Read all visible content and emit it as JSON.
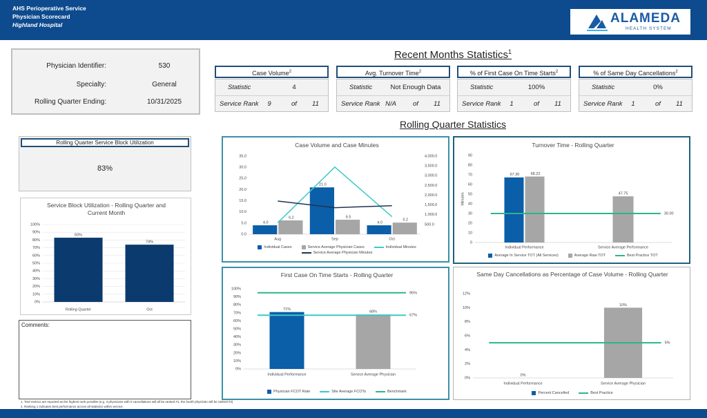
{
  "header": {
    "lines": [
      "AHS Perioperative Service",
      "Physician Scorecard",
      "Highland Hospital"
    ],
    "logo": {
      "name": "ALAMEDA",
      "tagline": "HEALTH SYSTEM"
    }
  },
  "physician": {
    "rows": [
      [
        "Physician Identifier:",
        "530"
      ],
      [
        "Specialty:",
        "General"
      ],
      [
        "Rolling Quarter Ending:",
        "10/31/2025"
      ]
    ]
  },
  "recent": {
    "title": "Recent Months Statistics",
    "note": "1",
    "cards": [
      {
        "title": "Case Volume",
        "note": "2",
        "statistic_label": "Statistic",
        "statistic": "4",
        "rank_label": "Service Rank",
        "rank": "9",
        "of": "of",
        "total": "11"
      },
      {
        "title": "Avg. Turnover Time",
        "note": "2",
        "statistic_label": "Statistic",
        "statistic": "Not Enough Data",
        "rank_label": "Service Rank",
        "rank": "N/A",
        "of": "of",
        "total": "11"
      },
      {
        "title": "% of First Case On Time Starts",
        "note": "2",
        "statistic_label": "Statistic",
        "statistic": "100%",
        "rank_label": "Service Rank",
        "rank": "1",
        "of": "of",
        "total": "11"
      },
      {
        "title": "% of Same Day Cancellations",
        "note": "2",
        "statistic_label": "Statistic",
        "statistic": "0%",
        "rank_label": "Service Rank",
        "rank": "1",
        "of": "of",
        "total": "11"
      }
    ]
  },
  "rolling": {
    "title": "Rolling Quarter Statistics",
    "block_title": "Rolling Quarter Service Block Utilization",
    "block_value": "83%"
  },
  "comments": "Comments:",
  "footnotes": [
    "1. Tied metrics are reported as the highest rank possible (e.g. 3 physicians with 0 cancellations will all be ranked #1, the fourth physician will be ranked #4)",
    "2. Ranking 1 indicates best performance across all statistics within service."
  ],
  "chart_data": [
    {
      "type": "bar",
      "title": "Service Block Utilization - Rolling Quarter and Current Month",
      "categories": [
        "Rolling Quarter",
        "Oct"
      ],
      "series": [
        {
          "color": "#0b3a6e",
          "values": [
            83,
            74
          ],
          "value_labels": [
            "83%",
            "74%"
          ],
          "data_labels": true
        }
      ],
      "ylim": [
        0,
        100
      ],
      "yticks": [
        {
          "value": 0,
          "label": "0%"
        },
        {
          "value": 10,
          "label": "10%"
        },
        {
          "value": 20,
          "label": "20%"
        },
        {
          "value": 30,
          "label": "30%"
        },
        {
          "value": 40,
          "label": "40%"
        },
        {
          "value": 50,
          "label": "50%"
        },
        {
          "value": 60,
          "label": "60%"
        },
        {
          "value": 70,
          "label": "70%"
        },
        {
          "value": 80,
          "label": "80%"
        },
        {
          "value": 90,
          "label": "90%"
        },
        {
          "value": 100,
          "label": "100%"
        }
      ],
      "grid": true
    },
    {
      "type": "combo",
      "title": "Case Volume and Case Minutes",
      "categories": [
        "Aug",
        "Sep",
        "Oct"
      ],
      "series": [
        {
          "name": "Individual Cases",
          "kind": "bar",
          "color": "#0b5ea8",
          "values": [
            4,
            21,
            4
          ],
          "value_labels": [
            "4.0",
            "21.0",
            "4.0"
          ],
          "data_labels": true
        },
        {
          "name": "Service Average Physician Cases",
          "kind": "bar",
          "color": "#a6a6a6",
          "values": [
            6.2,
            6.5,
            5.2
          ],
          "data_labels": true
        },
        {
          "name": "Individual Minutes",
          "kind": "line",
          "axis": "y2",
          "color": "#3cc8c8",
          "values": [
            590,
            3440,
            900
          ]
        },
        {
          "name": "Service Average Physician Minutes",
          "kind": "line",
          "axis": "y2",
          "color": "#1f3350",
          "values": [
            1700,
            1360,
            1460
          ]
        }
      ],
      "ylim": [
        0,
        35
      ],
      "yticks": [
        {
          "value": 0,
          "label": "0.0"
        },
        {
          "value": 5,
          "label": "5.0"
        },
        {
          "value": 10,
          "label": "10.0"
        },
        {
          "value": 15,
          "label": "15.0"
        },
        {
          "value": 20,
          "label": "20.0"
        },
        {
          "value": 25,
          "label": "25.0"
        },
        {
          "value": 30,
          "label": "30.0"
        },
        {
          "value": 35,
          "label": "35.0"
        }
      ],
      "y2lim": [
        0,
        4000
      ],
      "y2ticks": [
        {
          "value": 500,
          "label": "500.0"
        },
        {
          "value": 1000,
          "label": "1,000.0"
        },
        {
          "value": 1500,
          "label": "1,500.0"
        },
        {
          "value": 2000,
          "label": "2,000.0"
        },
        {
          "value": 2500,
          "label": "2,500.0"
        },
        {
          "value": 3000,
          "label": "3,000.0"
        },
        {
          "value": 3500,
          "label": "3,500.0"
        },
        {
          "value": 4000,
          "label": "4,000.0"
        }
      ],
      "grid": false
    },
    {
      "type": "bar",
      "title": "Turnover Time - Rolling Quarter",
      "y_label": "Minutes",
      "categories": [
        "Individual Performance",
        "Service Average Performance"
      ],
      "series": [
        {
          "name": "Average In Service TOT (All Services)",
          "color": "#0b5ea8",
          "values": [
            67.3,
            null
          ],
          "value_labels": [
            "67.30",
            null
          ],
          "data_labels": true
        },
        {
          "name": "Average Raw TOT",
          "color": "#a6a6a6",
          "values": [
            68.22,
            47.75
          ],
          "data_labels": true
        }
      ],
      "reference_lines": [
        {
          "name": "Best Practice TOT",
          "color": "#2bb58a",
          "value": 30,
          "value_label": "30.00"
        }
      ],
      "ylim": [
        0,
        90
      ],
      "yticks": [
        0,
        10,
        20,
        30,
        40,
        50,
        60,
        70,
        80,
        90
      ],
      "grid": false
    },
    {
      "type": "bar",
      "title": "First Case On Time Starts - Rolling Quarter",
      "categories": [
        "Individual Performance",
        "Service Average Physician"
      ],
      "series": [
        {
          "name": "Physician FCOT Rate",
          "color": "#0b5ea8",
          "colors": [
            "#0b5ea8",
            "#a6a6a6"
          ],
          "values": [
            71,
            68
          ],
          "value_labels": [
            "71%",
            "68%"
          ],
          "data_labels": true
        }
      ],
      "reference_lines": [
        {
          "name": "Site Average FCOTs",
          "color": "#3cc8c8",
          "value": 67,
          "value_label": "67%"
        },
        {
          "name": "Benchmark",
          "color": "#2bb58a",
          "value": 95,
          "value_label": "95%"
        }
      ],
      "ylim": [
        0,
        100
      ],
      "yticks": [
        {
          "value": 0,
          "label": "0%"
        },
        {
          "value": 10,
          "label": "10%"
        },
        {
          "value": 20,
          "label": "20%"
        },
        {
          "value": 30,
          "label": "30%"
        },
        {
          "value": 40,
          "label": "40%"
        },
        {
          "value": 50,
          "label": "50%"
        },
        {
          "value": 60,
          "label": "60%"
        },
        {
          "value": 70,
          "label": "70%"
        },
        {
          "value": 80,
          "label": "80%"
        },
        {
          "value": 90,
          "label": "90%"
        },
        {
          "value": 100,
          "label": "100%"
        }
      ],
      "grid": false
    },
    {
      "type": "bar",
      "title": "Same Day Cancellations as Percentage of Case Volume - Rolling Quarter",
      "categories": [
        "Individual Performance",
        "Service Average Physician"
      ],
      "series": [
        {
          "name": "Percent Cancelled",
          "color": "#0b5ea8",
          "colors": [
            "#0b5ea8",
            "#a6a6a6"
          ],
          "values": [
            0,
            10
          ],
          "value_labels": [
            "0%",
            "10%"
          ],
          "data_labels": true
        }
      ],
      "reference_lines": [
        {
          "name": "Best Practice",
          "color": "#2bb58a",
          "value": 5,
          "value_label": "5%"
        }
      ],
      "ylim": [
        0,
        12
      ],
      "yticks": [
        {
          "value": 0,
          "label": "0%"
        },
        {
          "value": 2,
          "label": "2%"
        },
        {
          "value": 4,
          "label": "4%"
        },
        {
          "value": 6,
          "label": "6%"
        },
        {
          "value": 8,
          "label": "8%"
        },
        {
          "value": 10,
          "label": "10%"
        },
        {
          "value": 12,
          "label": "12%"
        }
      ],
      "grid": false
    }
  ]
}
